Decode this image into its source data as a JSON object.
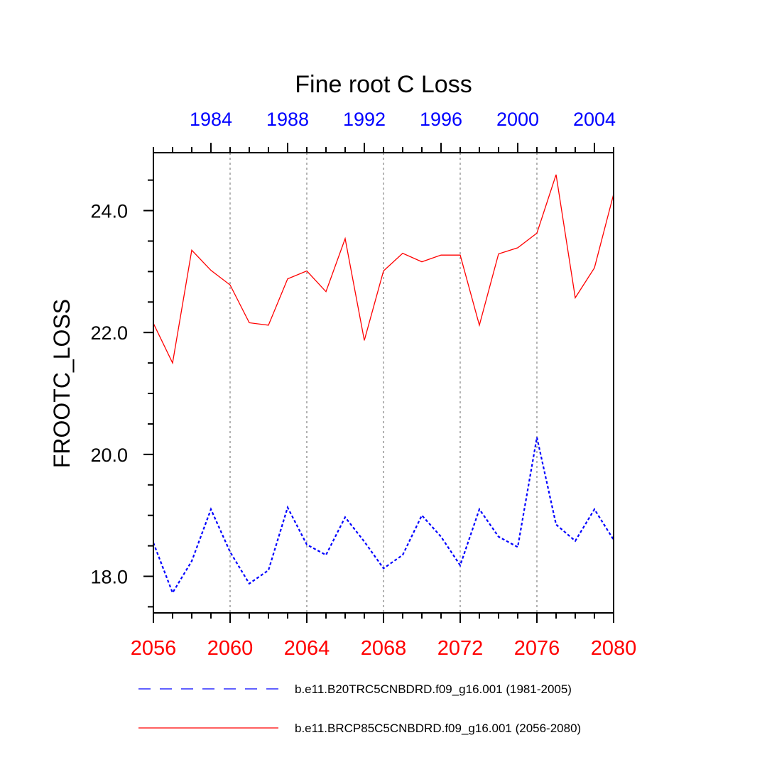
{
  "chart_data": {
    "type": "line",
    "title": "Fine root C Loss",
    "ylabel": "FROOTC_LOSS",
    "xlabel": "",
    "ylim": [
      17.4,
      24.95
    ],
    "yticks": [
      18.0,
      20.0,
      22.0,
      24.0
    ],
    "ytick_labels": [
      "18.0",
      "20.0",
      "22.0",
      "24.0"
    ],
    "grid": "vertical dotted at labeled bottom years",
    "bottom_axis": {
      "color": "#ff0000",
      "range": [
        2056,
        2080
      ],
      "ticks": [
        2056,
        2060,
        2064,
        2068,
        2072,
        2076,
        2080
      ],
      "tick_labels": [
        "2056",
        "2060",
        "2064",
        "2068",
        "2072",
        "2076",
        "2080"
      ]
    },
    "top_axis": {
      "color": "#0000ff",
      "range": [
        1981,
        2005
      ],
      "ticks": [
        1984,
        1988,
        1992,
        1996,
        2000,
        2004
      ],
      "tick_labels": [
        "1984",
        "1988",
        "1992",
        "1996",
        "2000",
        "2004"
      ]
    },
    "series": [
      {
        "name": "b.e11.B20TRC5CNBDRD.f09_g16.001 (1981-2005)",
        "color": "#0000ff",
        "style": "dashed",
        "axis": "top",
        "x": [
          1981,
          1982,
          1983,
          1984,
          1985,
          1986,
          1987,
          1988,
          1989,
          1990,
          1991,
          1992,
          1993,
          1994,
          1995,
          1996,
          1997,
          1998,
          1999,
          2000,
          2001,
          2002,
          2003,
          2004,
          2005
        ],
        "values": [
          18.55,
          17.73,
          18.25,
          19.1,
          18.4,
          17.88,
          18.1,
          19.13,
          18.52,
          18.35,
          18.97,
          18.57,
          18.13,
          18.35,
          19.0,
          18.65,
          18.18,
          19.1,
          18.65,
          18.48,
          20.28,
          18.85,
          18.58,
          19.1,
          18.6
        ]
      },
      {
        "name": "b.e11.BRCP85C5CNBDRD.f09_g16.001 (2056-2080)",
        "color": "#ff0000",
        "style": "solid",
        "axis": "bottom",
        "x": [
          2056,
          2057,
          2058,
          2059,
          2060,
          2061,
          2062,
          2063,
          2064,
          2065,
          2066,
          2067,
          2068,
          2069,
          2070,
          2071,
          2072,
          2073,
          2074,
          2075,
          2076,
          2077,
          2078,
          2079,
          2080
        ],
        "values": [
          22.15,
          21.5,
          23.35,
          23.02,
          22.78,
          22.16,
          22.12,
          22.88,
          23.01,
          22.67,
          23.54,
          21.87,
          23.01,
          23.3,
          23.16,
          23.27,
          23.27,
          22.12,
          23.29,
          23.39,
          23.63,
          24.59,
          22.57,
          23.06,
          24.27
        ]
      }
    ],
    "legend_position": "bottom"
  }
}
